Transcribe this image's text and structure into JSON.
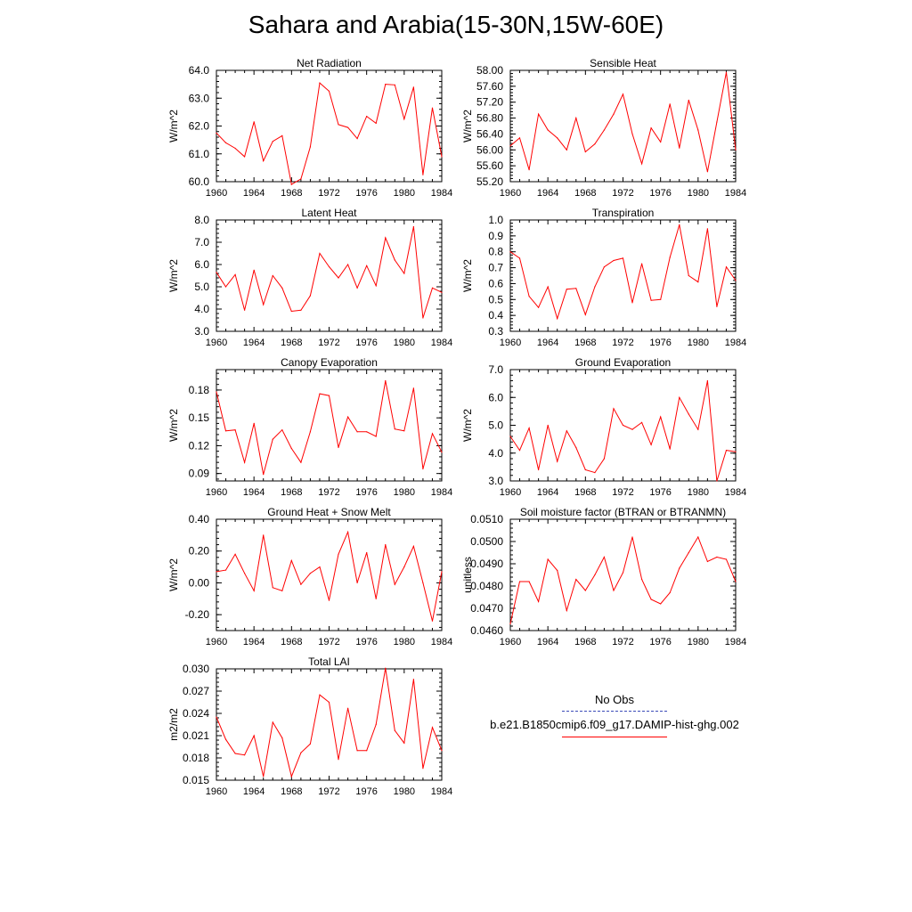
{
  "title": "Sahara and Arabia(15-30N,15W-60E)",
  "legend": {
    "obs_label": "No Obs",
    "model_label": "b.e21.B1850cmip6.f09_g17.DAMIP-hist-ghg.002",
    "obs_color": "#3b4bb8",
    "model_color": "#ff0000"
  },
  "chart_data": [
    {
      "type": "line",
      "title": "Net Radiation",
      "ylabel": "W/m^2",
      "xlim": [
        1960,
        1984
      ],
      "ylim": [
        60.0,
        64.0
      ],
      "xticks": [
        "1960",
        "1964",
        "1968",
        "1972",
        "1976",
        "1980",
        "1984"
      ],
      "yticks": [
        "60.0",
        "61.0",
        "62.0",
        "63.0",
        "64.0"
      ],
      "x": [
        1960,
        1961,
        1962,
        1963,
        1964,
        1965,
        1966,
        1967,
        1968,
        1969,
        1970,
        1971,
        1972,
        1973,
        1974,
        1975,
        1976,
        1977,
        1978,
        1979,
        1980,
        1981,
        1982,
        1983,
        1984
      ],
      "series": [
        {
          "values": [
            61.75,
            61.4,
            61.2,
            60.9,
            62.15,
            60.75,
            61.45,
            61.65,
            59.9,
            60.1,
            61.25,
            63.55,
            63.25,
            62.05,
            61.95,
            61.55,
            62.35,
            62.1,
            63.5,
            63.48,
            62.25,
            63.4,
            60.25,
            62.65,
            60.9
          ]
        }
      ]
    },
    {
      "type": "line",
      "title": "Sensible Heat",
      "ylabel": "W/m^2",
      "xlim": [
        1960,
        1984
      ],
      "ylim": [
        55.2,
        58.0
      ],
      "xticks": [
        "1960",
        "1964",
        "1968",
        "1972",
        "1976",
        "1980",
        "1984"
      ],
      "yticks": [
        "55.20",
        "55.60",
        "56.00",
        "56.40",
        "56.80",
        "57.20",
        "57.60",
        "58.00"
      ],
      "x": [
        1960,
        1961,
        1962,
        1963,
        1964,
        1965,
        1966,
        1967,
        1968,
        1969,
        1970,
        1971,
        1972,
        1973,
        1974,
        1975,
        1976,
        1977,
        1978,
        1979,
        1980,
        1981,
        1982,
        1983,
        1984
      ],
      "series": [
        {
          "values": [
            56.1,
            56.3,
            55.5,
            56.9,
            56.5,
            56.3,
            56.0,
            56.8,
            55.95,
            56.15,
            56.5,
            56.9,
            57.4,
            56.4,
            55.65,
            56.55,
            56.2,
            57.15,
            56.05,
            57.25,
            56.5,
            55.45,
            56.7,
            57.95,
            56.0
          ]
        }
      ]
    },
    {
      "type": "line",
      "title": "Latent Heat",
      "ylabel": "W/m^2",
      "xlim": [
        1960,
        1984
      ],
      "ylim": [
        3.0,
        8.0
      ],
      "xticks": [
        "1960",
        "1964",
        "1968",
        "1972",
        "1976",
        "1980",
        "1984"
      ],
      "yticks": [
        "3.0",
        "4.0",
        "5.0",
        "6.0",
        "7.0",
        "8.0"
      ],
      "x": [
        1960,
        1961,
        1962,
        1963,
        1964,
        1965,
        1966,
        1967,
        1968,
        1969,
        1970,
        1971,
        1972,
        1973,
        1974,
        1975,
        1976,
        1977,
        1978,
        1979,
        1980,
        1981,
        1982,
        1983,
        1984
      ],
      "series": [
        {
          "values": [
            5.65,
            5.0,
            5.55,
            3.95,
            5.75,
            4.2,
            5.5,
            4.95,
            3.9,
            3.95,
            4.6,
            6.5,
            5.9,
            5.4,
            6.0,
            4.95,
            5.95,
            5.05,
            7.2,
            6.2,
            5.6,
            7.7,
            3.6,
            4.95,
            4.75
          ]
        }
      ]
    },
    {
      "type": "line",
      "title": "Transpiration",
      "ylabel": "W/m^2",
      "xlim": [
        1960,
        1984
      ],
      "ylim": [
        0.3,
        1.0
      ],
      "xticks": [
        "1960",
        "1964",
        "1968",
        "1972",
        "1976",
        "1980",
        "1984"
      ],
      "yticks": [
        "0.3",
        "0.4",
        "0.5",
        "0.6",
        "0.7",
        "0.8",
        "0.9",
        "1.0"
      ],
      "x": [
        1960,
        1961,
        1962,
        1963,
        1964,
        1965,
        1966,
        1967,
        1968,
        1969,
        1970,
        1971,
        1972,
        1973,
        1974,
        1975,
        1976,
        1977,
        1978,
        1979,
        1980,
        1981,
        1982,
        1983,
        1984
      ],
      "series": [
        {
          "values": [
            0.8,
            0.76,
            0.52,
            0.45,
            0.58,
            0.38,
            0.565,
            0.57,
            0.405,
            0.58,
            0.705,
            0.745,
            0.76,
            0.48,
            0.725,
            0.495,
            0.5,
            0.765,
            0.97,
            0.65,
            0.61,
            0.945,
            0.455,
            0.705,
            0.62
          ]
        }
      ]
    },
    {
      "type": "line",
      "title": "Canopy Evaporation",
      "ylabel": "W/m^2",
      "xlim": [
        1960,
        1984
      ],
      "ylim": [
        0.082,
        0.202
      ],
      "xticks": [
        "1960",
        "1964",
        "1968",
        "1972",
        "1976",
        "1980",
        "1984"
      ],
      "yticks": [
        "0.09",
        "0.12",
        "0.15",
        "0.18"
      ],
      "ytickvalues": [
        0.09,
        0.12,
        0.15,
        0.18
      ],
      "x": [
        1960,
        1961,
        1962,
        1963,
        1964,
        1965,
        1966,
        1967,
        1968,
        1969,
        1970,
        1971,
        1972,
        1973,
        1974,
        1975,
        1976,
        1977,
        1978,
        1979,
        1980,
        1981,
        1982,
        1983,
        1984
      ],
      "series": [
        {
          "values": [
            0.178,
            0.136,
            0.137,
            0.102,
            0.144,
            0.089,
            0.127,
            0.137,
            0.117,
            0.102,
            0.135,
            0.176,
            0.174,
            0.118,
            0.151,
            0.135,
            0.135,
            0.13,
            0.19,
            0.138,
            0.136,
            0.182,
            0.095,
            0.133,
            0.113
          ]
        }
      ]
    },
    {
      "type": "line",
      "title": "Ground Evaporation",
      "ylabel": "W/m^2",
      "xlim": [
        1960,
        1984
      ],
      "ylim": [
        3.0,
        7.0
      ],
      "xticks": [
        "1960",
        "1964",
        "1968",
        "1972",
        "1976",
        "1980",
        "1984"
      ],
      "yticks": [
        "3.0",
        "4.0",
        "5.0",
        "6.0",
        "7.0"
      ],
      "x": [
        1960,
        1961,
        1962,
        1963,
        1964,
        1965,
        1966,
        1967,
        1968,
        1969,
        1970,
        1971,
        1972,
        1973,
        1974,
        1975,
        1976,
        1977,
        1978,
        1979,
        1980,
        1981,
        1982,
        1983,
        1984
      ],
      "series": [
        {
          "values": [
            4.6,
            4.1,
            4.9,
            3.4,
            5.0,
            3.7,
            4.8,
            4.2,
            3.4,
            3.3,
            3.8,
            5.6,
            5.0,
            4.85,
            5.1,
            4.3,
            5.3,
            4.15,
            6.0,
            5.4,
            4.85,
            6.6,
            3.0,
            4.1,
            4.05
          ]
        }
      ]
    },
    {
      "type": "line",
      "title": "Ground Heat + Snow Melt",
      "ylabel": "W/m^2",
      "xlim": [
        1960,
        1984
      ],
      "ylim": [
        -0.3,
        0.4
      ],
      "xticks": [
        "1960",
        "1964",
        "1968",
        "1972",
        "1976",
        "1980",
        "1984"
      ],
      "yticks": [
        "-0.20",
        "0.00",
        "0.20",
        "0.40"
      ],
      "ytickvalues": [
        -0.2,
        0.0,
        0.2,
        0.4
      ],
      "x": [
        1960,
        1961,
        1962,
        1963,
        1964,
        1965,
        1966,
        1967,
        1968,
        1969,
        1970,
        1971,
        1972,
        1973,
        1974,
        1975,
        1976,
        1977,
        1978,
        1979,
        1980,
        1981,
        1982,
        1983,
        1984
      ],
      "series": [
        {
          "values": [
            0.07,
            0.08,
            0.18,
            0.06,
            -0.05,
            0.3,
            -0.03,
            -0.05,
            0.14,
            -0.01,
            0.06,
            0.1,
            -0.11,
            0.18,
            0.32,
            0.0,
            0.19,
            -0.1,
            0.24,
            -0.01,
            0.1,
            0.23,
            0.0,
            -0.24,
            0.07
          ]
        }
      ]
    },
    {
      "type": "line",
      "title": "Soil moisture factor (BTRAN or BTRANMN)",
      "ylabel": "unitless",
      "xlim": [
        1960,
        1984
      ],
      "ylim": [
        0.046,
        0.051
      ],
      "xticks": [
        "1960",
        "1964",
        "1968",
        "1972",
        "1976",
        "1980",
        "1984"
      ],
      "yticks": [
        "0.0460",
        "0.0470",
        "0.0480",
        "0.0490",
        "0.0500",
        "0.0510"
      ],
      "x": [
        1960,
        1961,
        1962,
        1963,
        1964,
        1965,
        1966,
        1967,
        1968,
        1969,
        1970,
        1971,
        1972,
        1973,
        1974,
        1975,
        1976,
        1977,
        1978,
        1979,
        1980,
        1981,
        1982,
        1983,
        1984
      ],
      "series": [
        {
          "values": [
            0.0463,
            0.0482,
            0.0482,
            0.0473,
            0.0492,
            0.0487,
            0.0469,
            0.0483,
            0.0478,
            0.0485,
            0.0493,
            0.0478,
            0.0486,
            0.0502,
            0.0483,
            0.0474,
            0.0472,
            0.0477,
            0.0488,
            0.0495,
            0.0502,
            0.0491,
            0.0493,
            0.0492,
            0.0482
          ]
        }
      ]
    },
    {
      "type": "line",
      "title": "Total LAI",
      "ylabel": "m2/m2",
      "xlim": [
        1960,
        1984
      ],
      "ylim": [
        0.015,
        0.03
      ],
      "xticks": [
        "1960",
        "1964",
        "1968",
        "1972",
        "1976",
        "1980",
        "1984"
      ],
      "yticks": [
        "0.015",
        "0.018",
        "0.021",
        "0.024",
        "0.027",
        "0.030"
      ],
      "x": [
        1960,
        1961,
        1962,
        1963,
        1964,
        1965,
        1966,
        1967,
        1968,
        1969,
        1970,
        1971,
        1972,
        1973,
        1974,
        1975,
        1976,
        1977,
        1978,
        1979,
        1980,
        1981,
        1982,
        1983,
        1984
      ],
      "series": [
        {
          "values": [
            0.0235,
            0.0205,
            0.0186,
            0.0184,
            0.021,
            0.0155,
            0.0228,
            0.0207,
            0.0155,
            0.0187,
            0.0199,
            0.0265,
            0.0255,
            0.0178,
            0.0247,
            0.019,
            0.019,
            0.0225,
            0.0301,
            0.0217,
            0.02,
            0.0286,
            0.0166,
            0.0221,
            0.019
          ]
        }
      ]
    }
  ]
}
